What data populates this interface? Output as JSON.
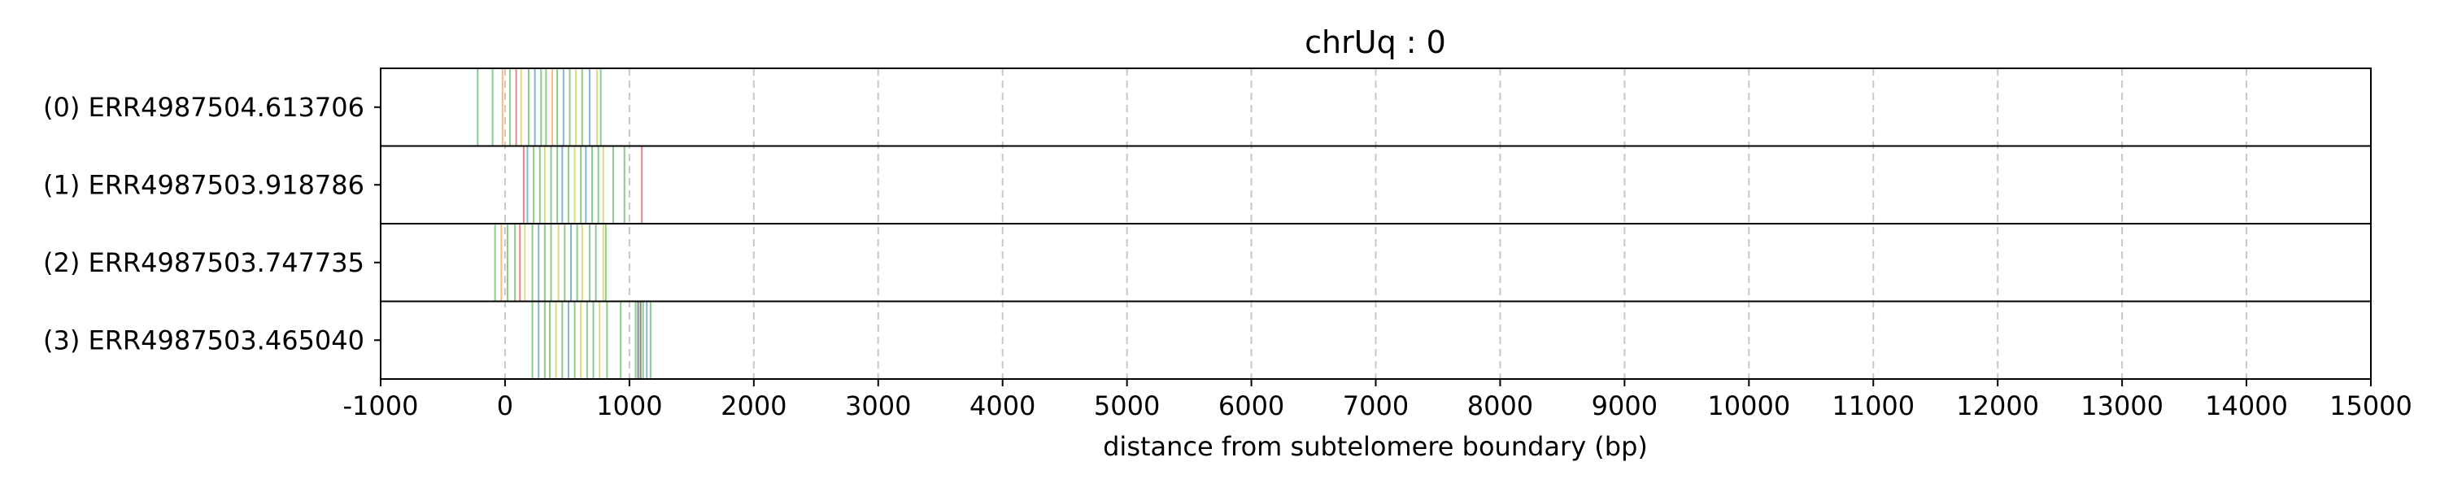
{
  "chart_data": {
    "type": "strip",
    "title": "chrUq : 0",
    "xlabel": "distance from subtelomere boundary (bp)",
    "ylabel": "",
    "xlim": [
      -1000,
      15000
    ],
    "xticks": [
      -1000,
      0,
      1000,
      2000,
      3000,
      4000,
      5000,
      6000,
      7000,
      8000,
      9000,
      10000,
      11000,
      12000,
      13000,
      14000,
      15000
    ],
    "grid": "vertical-dashed",
    "rows": [
      {
        "label": "(0) ERR4987504.613706",
        "marks": [
          {
            "x": -220,
            "color": "#2ca02c"
          },
          {
            "x": -100,
            "color": "#2ca02c"
          },
          {
            "x": -20,
            "color": "#ff7f0e"
          },
          {
            "x": 40,
            "color": "#2ca02c"
          },
          {
            "x": 90,
            "color": "#d62728"
          },
          {
            "x": 130,
            "color": "#bcbd22"
          },
          {
            "x": 190,
            "color": "#2ca02c"
          },
          {
            "x": 240,
            "color": "#1f77b4"
          },
          {
            "x": 290,
            "color": "#2ca02c"
          },
          {
            "x": 330,
            "color": "#2ca02c"
          },
          {
            "x": 380,
            "color": "#ff7f0e"
          },
          {
            "x": 420,
            "color": "#2ca02c"
          },
          {
            "x": 470,
            "color": "#1f77b4"
          },
          {
            "x": 520,
            "color": "#2ca02c"
          },
          {
            "x": 570,
            "color": "#bcbd22"
          },
          {
            "x": 620,
            "color": "#2ca02c"
          },
          {
            "x": 680,
            "color": "#1f77b4"
          },
          {
            "x": 740,
            "color": "#bcbd22"
          },
          {
            "x": 770,
            "color": "#2ca02c"
          }
        ]
      },
      {
        "label": "(1) ERR4987503.918786",
        "marks": [
          {
            "x": 150,
            "color": "#d62728"
          },
          {
            "x": 180,
            "color": "#1f77b4"
          },
          {
            "x": 230,
            "color": "#2ca02c"
          },
          {
            "x": 280,
            "color": "#2ca02c"
          },
          {
            "x": 320,
            "color": "#bcbd22"
          },
          {
            "x": 370,
            "color": "#2ca02c"
          },
          {
            "x": 420,
            "color": "#2ca02c"
          },
          {
            "x": 460,
            "color": "#1f77b4"
          },
          {
            "x": 510,
            "color": "#2ca02c"
          },
          {
            "x": 560,
            "color": "#bcbd22"
          },
          {
            "x": 610,
            "color": "#2ca02c"
          },
          {
            "x": 650,
            "color": "#1f77b4"
          },
          {
            "x": 700,
            "color": "#2ca02c"
          },
          {
            "x": 750,
            "color": "#2ca02c"
          },
          {
            "x": 790,
            "color": "#bcbd22"
          },
          {
            "x": 870,
            "color": "#2ca02c"
          },
          {
            "x": 960,
            "color": "#2ca02c"
          },
          {
            "x": 1100,
            "color": "#d62728"
          }
        ]
      },
      {
        "label": "(2) ERR4987503.747735",
        "marks": [
          {
            "x": -80,
            "color": "#2ca02c"
          },
          {
            "x": -30,
            "color": "#ff7f0e"
          },
          {
            "x": 20,
            "color": "#2ca02c"
          },
          {
            "x": 80,
            "color": "#2ca02c"
          },
          {
            "x": 120,
            "color": "#d62728"
          },
          {
            "x": 160,
            "color": "#bcbd22"
          },
          {
            "x": 220,
            "color": "#2ca02c"
          },
          {
            "x": 270,
            "color": "#1f77b4"
          },
          {
            "x": 320,
            "color": "#2ca02c"
          },
          {
            "x": 370,
            "color": "#2ca02c"
          },
          {
            "x": 430,
            "color": "#bcbd22"
          },
          {
            "x": 480,
            "color": "#2ca02c"
          },
          {
            "x": 530,
            "color": "#1f77b4"
          },
          {
            "x": 580,
            "color": "#2ca02c"
          },
          {
            "x": 620,
            "color": "#bcbd22"
          },
          {
            "x": 680,
            "color": "#2ca02c"
          },
          {
            "x": 730,
            "color": "#2ca02c"
          },
          {
            "x": 790,
            "color": "#bcbd22"
          },
          {
            "x": 810,
            "color": "#2ca02c"
          }
        ]
      },
      {
        "label": "(3) ERR4987503.465040",
        "marks": [
          {
            "x": 220,
            "color": "#2ca02c"
          },
          {
            "x": 270,
            "color": "#1f77b4"
          },
          {
            "x": 320,
            "color": "#2ca02c"
          },
          {
            "x": 360,
            "color": "#2ca02c"
          },
          {
            "x": 410,
            "color": "#bcbd22"
          },
          {
            "x": 460,
            "color": "#2ca02c"
          },
          {
            "x": 510,
            "color": "#1f77b4"
          },
          {
            "x": 560,
            "color": "#2ca02c"
          },
          {
            "x": 610,
            "color": "#bcbd22"
          },
          {
            "x": 660,
            "color": "#2ca02c"
          },
          {
            "x": 710,
            "color": "#2ca02c"
          },
          {
            "x": 760,
            "color": "#bcbd22"
          },
          {
            "x": 820,
            "color": "#2ca02c"
          },
          {
            "x": 930,
            "color": "#2ca02c"
          },
          {
            "x": 1050,
            "color": "#2ca02c"
          },
          {
            "x": 1070,
            "color": "#1f1f1f"
          },
          {
            "x": 1090,
            "color": "#1f1f1f"
          },
          {
            "x": 1110,
            "color": "#2ca02c"
          },
          {
            "x": 1140,
            "color": "#1f77b4"
          },
          {
            "x": 1170,
            "color": "#2ca02c"
          }
        ]
      }
    ]
  }
}
